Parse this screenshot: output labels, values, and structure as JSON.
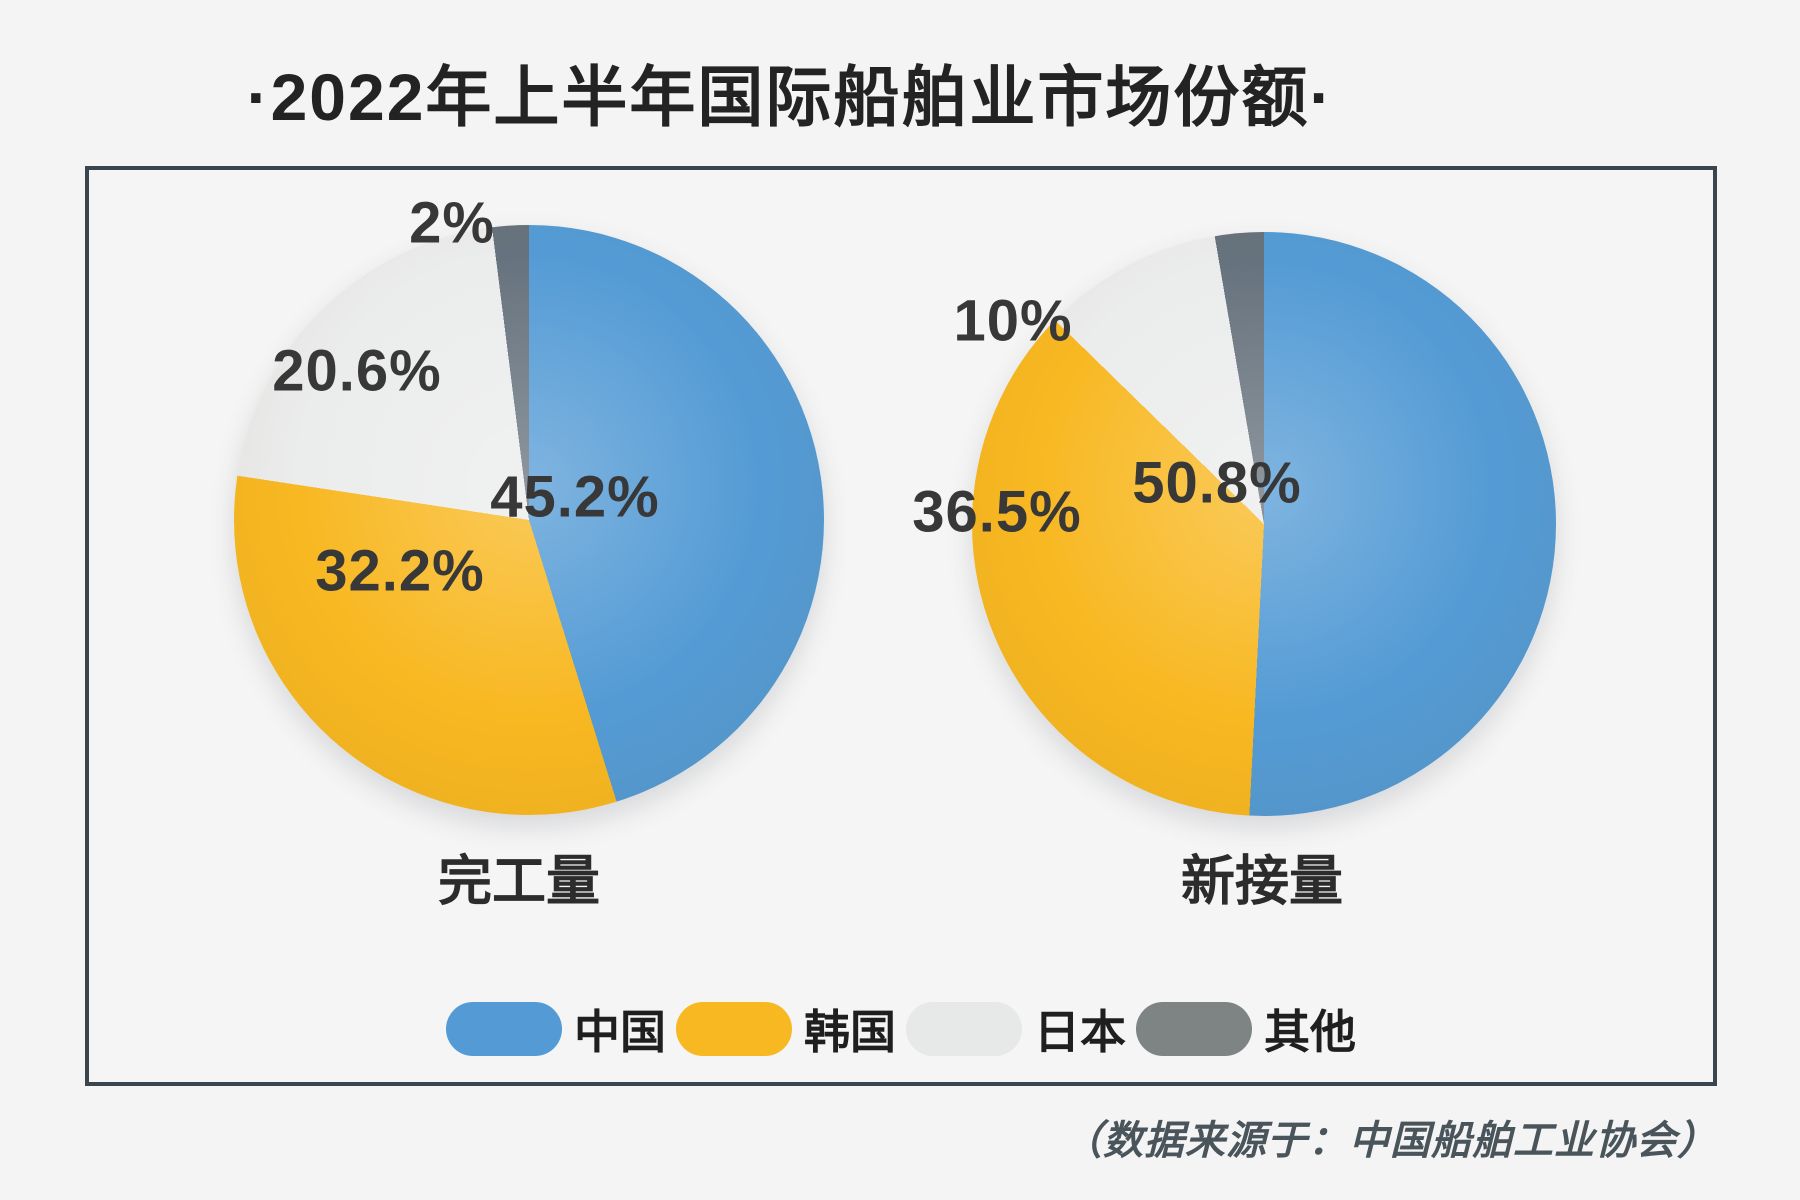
{
  "title": "·2022年上半年国际船舶业市场份额·",
  "source_note": "（数据来源于：中国船舶工业协会）",
  "colors": {
    "china": "#549bd5",
    "korea": "#f8b822",
    "japan": "#ebecec",
    "other": "#66727d",
    "legend_japan": "#e7e8e8",
    "legend_other": "#7e8384",
    "panel_border": "#3a454d",
    "background": "#f4f4f4",
    "label_text": "#383838"
  },
  "legend": {
    "items": [
      {
        "label": "中国",
        "color_key": "china"
      },
      {
        "label": "韩国",
        "color_key": "korea"
      },
      {
        "label": "日本",
        "color_key": "legend_japan"
      },
      {
        "label": "其他",
        "color_key": "legend_other"
      }
    ]
  },
  "chart_data": [
    {
      "type": "pie",
      "title": "完工量",
      "categories": [
        "中国",
        "韩国",
        "日本",
        "其他"
      ],
      "values": [
        45.2,
        32.2,
        20.6,
        2
      ],
      "value_labels": [
        "45.2%",
        "32.2%",
        "20.6%",
        "2%"
      ],
      "color_keys": [
        "china",
        "korea",
        "japan",
        "other"
      ],
      "start_angle_deg": 0,
      "direction": "clockwise",
      "legend_position": "bottom"
    },
    {
      "type": "pie",
      "title": "新接量",
      "categories": [
        "中国",
        "韩国",
        "日本",
        "其他"
      ],
      "values": [
        50.8,
        36.5,
        10,
        2.7
      ],
      "value_labels": [
        "50.8%",
        "36.5%",
        "10%",
        ""
      ],
      "color_keys": [
        "china",
        "korea",
        "japan",
        "other"
      ],
      "start_angle_deg": 0,
      "direction": "clockwise",
      "legend_position": "bottom",
      "note": "smallest slice unlabeled in source image"
    }
  ]
}
